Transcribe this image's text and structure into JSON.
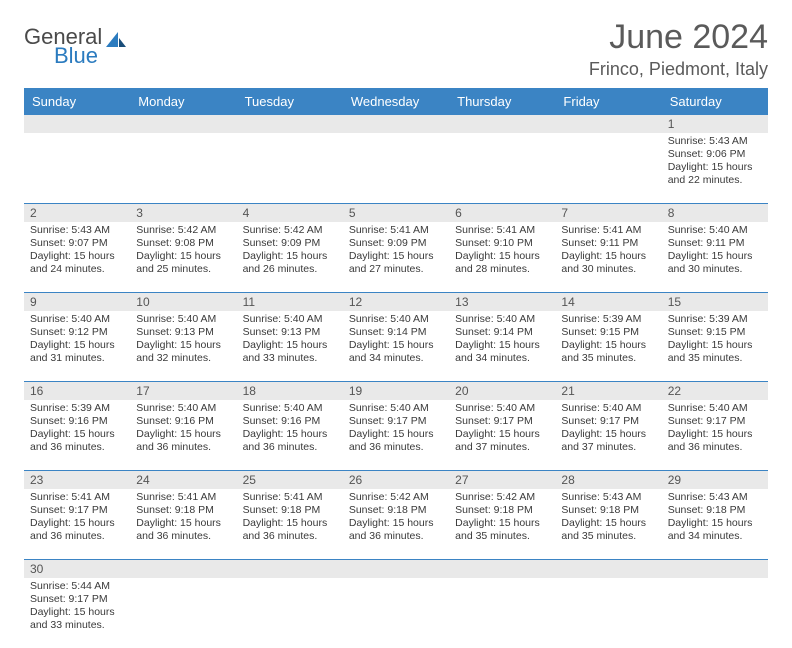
{
  "brand": {
    "part1": "General",
    "part2": "Blue"
  },
  "title": "June 2024",
  "location": "Frinco, Piedmont, Italy",
  "colors": {
    "header_bg": "#3b84c4",
    "numrow_bg": "#e9e9e9",
    "text": "#3a3a3a",
    "title": "#5a5a5a"
  },
  "daynames": [
    "Sunday",
    "Monday",
    "Tuesday",
    "Wednesday",
    "Thursday",
    "Friday",
    "Saturday"
  ],
  "weeks": [
    [
      null,
      null,
      null,
      null,
      null,
      null,
      {
        "n": "1",
        "sr": "5:43 AM",
        "ss": "9:06 PM",
        "dl": "15 hours and 22 minutes."
      }
    ],
    [
      {
        "n": "2",
        "sr": "5:43 AM",
        "ss": "9:07 PM",
        "dl": "15 hours and 24 minutes."
      },
      {
        "n": "3",
        "sr": "5:42 AM",
        "ss": "9:08 PM",
        "dl": "15 hours and 25 minutes."
      },
      {
        "n": "4",
        "sr": "5:42 AM",
        "ss": "9:09 PM",
        "dl": "15 hours and 26 minutes."
      },
      {
        "n": "5",
        "sr": "5:41 AM",
        "ss": "9:09 PM",
        "dl": "15 hours and 27 minutes."
      },
      {
        "n": "6",
        "sr": "5:41 AM",
        "ss": "9:10 PM",
        "dl": "15 hours and 28 minutes."
      },
      {
        "n": "7",
        "sr": "5:41 AM",
        "ss": "9:11 PM",
        "dl": "15 hours and 30 minutes."
      },
      {
        "n": "8",
        "sr": "5:40 AM",
        "ss": "9:11 PM",
        "dl": "15 hours and 30 minutes."
      }
    ],
    [
      {
        "n": "9",
        "sr": "5:40 AM",
        "ss": "9:12 PM",
        "dl": "15 hours and 31 minutes."
      },
      {
        "n": "10",
        "sr": "5:40 AM",
        "ss": "9:13 PM",
        "dl": "15 hours and 32 minutes."
      },
      {
        "n": "11",
        "sr": "5:40 AM",
        "ss": "9:13 PM",
        "dl": "15 hours and 33 minutes."
      },
      {
        "n": "12",
        "sr": "5:40 AM",
        "ss": "9:14 PM",
        "dl": "15 hours and 34 minutes."
      },
      {
        "n": "13",
        "sr": "5:40 AM",
        "ss": "9:14 PM",
        "dl": "15 hours and 34 minutes."
      },
      {
        "n": "14",
        "sr": "5:39 AM",
        "ss": "9:15 PM",
        "dl": "15 hours and 35 minutes."
      },
      {
        "n": "15",
        "sr": "5:39 AM",
        "ss": "9:15 PM",
        "dl": "15 hours and 35 minutes."
      }
    ],
    [
      {
        "n": "16",
        "sr": "5:39 AM",
        "ss": "9:16 PM",
        "dl": "15 hours and 36 minutes."
      },
      {
        "n": "17",
        "sr": "5:40 AM",
        "ss": "9:16 PM",
        "dl": "15 hours and 36 minutes."
      },
      {
        "n": "18",
        "sr": "5:40 AM",
        "ss": "9:16 PM",
        "dl": "15 hours and 36 minutes."
      },
      {
        "n": "19",
        "sr": "5:40 AM",
        "ss": "9:17 PM",
        "dl": "15 hours and 36 minutes."
      },
      {
        "n": "20",
        "sr": "5:40 AM",
        "ss": "9:17 PM",
        "dl": "15 hours and 37 minutes."
      },
      {
        "n": "21",
        "sr": "5:40 AM",
        "ss": "9:17 PM",
        "dl": "15 hours and 37 minutes."
      },
      {
        "n": "22",
        "sr": "5:40 AM",
        "ss": "9:17 PM",
        "dl": "15 hours and 36 minutes."
      }
    ],
    [
      {
        "n": "23",
        "sr": "5:41 AM",
        "ss": "9:17 PM",
        "dl": "15 hours and 36 minutes."
      },
      {
        "n": "24",
        "sr": "5:41 AM",
        "ss": "9:18 PM",
        "dl": "15 hours and 36 minutes."
      },
      {
        "n": "25",
        "sr": "5:41 AM",
        "ss": "9:18 PM",
        "dl": "15 hours and 36 minutes."
      },
      {
        "n": "26",
        "sr": "5:42 AM",
        "ss": "9:18 PM",
        "dl": "15 hours and 36 minutes."
      },
      {
        "n": "27",
        "sr": "5:42 AM",
        "ss": "9:18 PM",
        "dl": "15 hours and 35 minutes."
      },
      {
        "n": "28",
        "sr": "5:43 AM",
        "ss": "9:18 PM",
        "dl": "15 hours and 35 minutes."
      },
      {
        "n": "29",
        "sr": "5:43 AM",
        "ss": "9:18 PM",
        "dl": "15 hours and 34 minutes."
      }
    ],
    [
      {
        "n": "30",
        "sr": "5:44 AM",
        "ss": "9:17 PM",
        "dl": "15 hours and 33 minutes."
      },
      null,
      null,
      null,
      null,
      null,
      null
    ]
  ],
  "labels": {
    "sunrise": "Sunrise: ",
    "sunset": "Sunset: ",
    "daylight": "Daylight: "
  }
}
